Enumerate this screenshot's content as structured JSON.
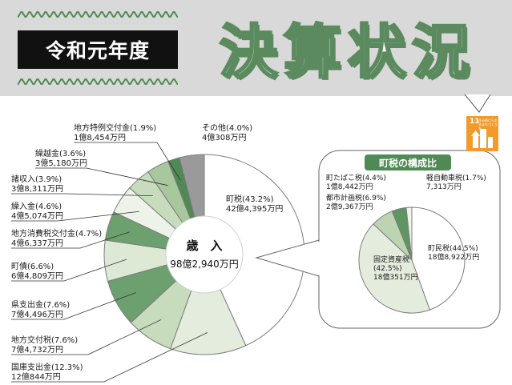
{
  "header": {
    "label": "令和元年度",
    "title": "決算状況"
  },
  "sdg": {
    "number": "11",
    "text": "住み続けられるまちづくりを",
    "color": "#f39a2b"
  },
  "chart_data": [
    {
      "type": "pie",
      "title": "歳　入",
      "total_label": "98億2,940万円",
      "slices": [
        {
          "name": "町税",
          "value": 43.2,
          "percent_label": "(43.2%)",
          "amount": "42億4,395万円",
          "color": "#ffffff"
        },
        {
          "name": "国庫支出金",
          "value": 12.3,
          "percent_label": "(12.3%)",
          "amount": "12億844万円",
          "color": "#e4eddd"
        },
        {
          "name": "地方交付税",
          "value": 7.6,
          "percent_label": "(7.6%)",
          "amount": "7億4,732万円",
          "color": "#c7dbbd"
        },
        {
          "name": "県支出金",
          "value": 7.6,
          "percent_label": "(7.6%)",
          "amount": "7億4,496万円",
          "color": "#6da06f"
        },
        {
          "name": "町債",
          "value": 6.6,
          "percent_label": "(6.6%)",
          "amount": "6億4,809万円",
          "color": "#dde8d5"
        },
        {
          "name": "地方消費税交付金",
          "value": 4.7,
          "percent_label": "(4.7%)",
          "amount": "4億6,337万円",
          "color": "#6da06f"
        },
        {
          "name": "繰入金",
          "value": 4.6,
          "percent_label": "(4.6%)",
          "amount": "4億5,074万円",
          "color": "#edf3e8"
        },
        {
          "name": "諸収入",
          "value": 3.9,
          "percent_label": "(3.9%)",
          "amount": "3億8,311万円",
          "color": "#c7dbbd"
        },
        {
          "name": "繰越金",
          "value": 3.6,
          "percent_label": "(3.6%)",
          "amount": "3億5,180万円",
          "color": "#a8c79d"
        },
        {
          "name": "地方特例交付金",
          "value": 1.9,
          "percent_label": "(1.9%)",
          "amount": "1億8,454万円",
          "color": "#4f8a55"
        },
        {
          "name": "その他",
          "value": 4.0,
          "percent_label": "(4.0%)",
          "amount": "4億308万円",
          "color": "#9a9a9a"
        }
      ]
    },
    {
      "type": "pie",
      "title": "町税の構成比",
      "slices": [
        {
          "name": "町民税",
          "value": 44.5,
          "percent_label": "(44.5%)",
          "amount": "18億8,922万円",
          "color": "#ffffff"
        },
        {
          "name": "固定資産税",
          "value": 42.5,
          "percent_label": "(42.5%)",
          "amount": "18億351万円",
          "color": "#e4eddd"
        },
        {
          "name": "都市計画税",
          "value": 6.9,
          "percent_label": "(6.9%)",
          "amount": "2億9,367万円",
          "color": "#bcd4b1"
        },
        {
          "name": "町たばこ税",
          "value": 4.4,
          "percent_label": "(4.4%)",
          "amount": "1億8,442万円",
          "color": "#5f9563"
        },
        {
          "name": "軽自動車税",
          "value": 1.7,
          "percent_label": "(1.7%)",
          "amount": "7,313万円",
          "color": "#f0f4ec"
        }
      ]
    }
  ]
}
